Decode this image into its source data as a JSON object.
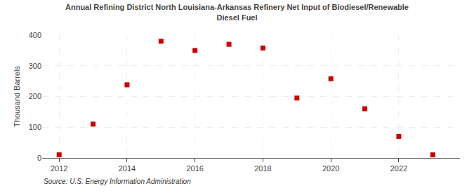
{
  "chart_data": {
    "type": "scatter",
    "title": "Annual Refining District North Louisiana-Arkansas Refinery Net Input of Biodiesel/Renewable\nDiesel Fuel",
    "ylabel": "Thousand Barrels",
    "annotations": [
      "Source: U.S. Energy Information Administration"
    ],
    "x": [
      2012,
      2013,
      2014,
      2015,
      2016,
      2017,
      2018,
      2019,
      2020,
      2021,
      2022,
      2023
    ],
    "values": [
      10,
      110,
      238,
      380,
      350,
      370,
      358,
      195,
      258,
      160,
      70,
      10
    ],
    "color": "#cc0000",
    "marker": "square",
    "xlim": [
      2011.5,
      2023.8
    ],
    "xticks": [
      2012,
      2014,
      2016,
      2018,
      2020,
      2022
    ],
    "ylim": [
      0,
      400
    ],
    "yticks": [
      0,
      100,
      200,
      300,
      400
    ],
    "grid": true
  }
}
